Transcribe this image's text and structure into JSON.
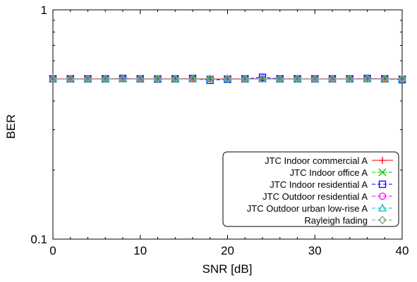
{
  "chart_data": {
    "type": "line",
    "xlabel": "SNR [dB]",
    "ylabel": "BER",
    "xlim": [
      0,
      40
    ],
    "ylim": [
      0.1,
      1
    ],
    "y_scale": "log",
    "x_ticks": [
      0,
      10,
      20,
      30,
      40
    ],
    "x_tick_labels": [
      "0",
      "10",
      "20",
      "30",
      "40"
    ],
    "y_ticks": [
      0.1,
      1
    ],
    "y_tick_labels": [
      "0.1",
      "1"
    ],
    "grid": false,
    "legend_position": "bottom-right",
    "x": [
      0,
      2,
      4,
      6,
      8,
      10,
      12,
      14,
      16,
      18,
      20,
      22,
      24,
      26,
      28,
      30,
      32,
      34,
      36,
      38,
      40
    ],
    "series": [
      {
        "name": "JTC Indoor commercial A",
        "color": "#ff0000",
        "marker": "plus",
        "dash": "solid",
        "values": [
          0.5,
          0.5,
          0.5,
          0.5,
          0.5,
          0.5,
          0.5,
          0.5,
          0.5,
          0.5,
          0.5,
          0.5,
          0.5,
          0.5,
          0.5,
          0.5,
          0.5,
          0.5,
          0.5,
          0.5,
          0.5
        ]
      },
      {
        "name": "JTC Indoor office A",
        "color": "#00c000",
        "marker": "cross",
        "dash": "dash",
        "values": [
          0.5,
          0.5,
          0.5,
          0.5,
          0.5,
          0.5,
          0.5,
          0.5,
          0.5,
          0.5,
          0.5,
          0.5,
          0.5,
          0.5,
          0.5,
          0.5,
          0.5,
          0.5,
          0.5,
          0.5,
          0.5
        ]
      },
      {
        "name": "JTC Indoor residential A",
        "color": "#0000ff",
        "marker": "square",
        "dash": "dash",
        "values": [
          0.5,
          0.5,
          0.5,
          0.5,
          0.502,
          0.5,
          0.499,
          0.5,
          0.502,
          0.493,
          0.498,
          0.5,
          0.508,
          0.5,
          0.5,
          0.5,
          0.5,
          0.5,
          0.502,
          0.5,
          0.496
        ]
      },
      {
        "name": "JTC Outdoor residential A",
        "color": "#ff00ff",
        "marker": "circle",
        "dash": "dash",
        "values": [
          0.5,
          0.5,
          0.5,
          0.5,
          0.5,
          0.5,
          0.5,
          0.5,
          0.5,
          0.5,
          0.5,
          0.5,
          0.5,
          0.5,
          0.5,
          0.5,
          0.5,
          0.5,
          0.5,
          0.5,
          0.5
        ]
      },
      {
        "name": "JTC Outdoor urban low-rise A",
        "color": "#00c0c0",
        "marker": "triangle",
        "dash": "dash",
        "values": [
          0.5,
          0.5,
          0.5,
          0.5,
          0.5,
          0.5,
          0.5,
          0.5,
          0.5,
          0.5,
          0.5,
          0.5,
          0.5,
          0.5,
          0.5,
          0.5,
          0.5,
          0.5,
          0.5,
          0.5,
          0.5
        ]
      },
      {
        "name": "Rayleigh fading",
        "color": "#80a080",
        "marker": "diamond",
        "dash": "dash",
        "values": [
          0.5,
          0.5,
          0.5,
          0.5,
          0.5,
          0.5,
          0.5,
          0.5,
          0.5,
          0.5,
          0.5,
          0.5,
          0.5,
          0.5,
          0.5,
          0.5,
          0.5,
          0.5,
          0.5,
          0.5,
          0.5
        ]
      }
    ]
  }
}
